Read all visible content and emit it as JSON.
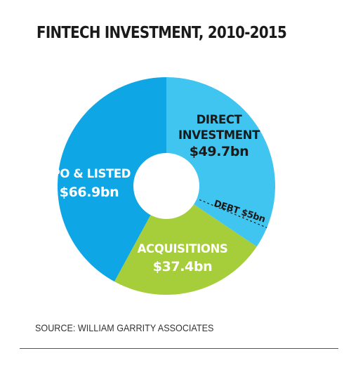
{
  "title": "FINTECH INVESTMENT, 2010-2015",
  "source": "SOURCE: WILLIAM GARRITY ASSOCIATES",
  "chart_data": {
    "type": "pie",
    "title": "FINTECH INVESTMENT, 2010-2015",
    "unit": "$bn",
    "slices": [
      {
        "label": "DIRECT INVESTMENT",
        "label_lines": [
          "DIRECT",
          "INVESTMENT"
        ],
        "value_text": "$49.7bn",
        "value": 49.7,
        "color": "#40c5f0"
      },
      {
        "label": "DEBT",
        "label_lines": [
          "DEBT $5bn"
        ],
        "value_text": "",
        "value": 5,
        "color": "#40c5f0"
      },
      {
        "label": "ACQUISITIONS",
        "label_lines": [
          "ACQUISITIONS"
        ],
        "value_text": "$37.4bn",
        "value": 37.4,
        "color": "#a6cd3a"
      },
      {
        "label": "IPO & LISTED",
        "label_lines": [
          "IPO & LISTED"
        ],
        "value_text": "$66.9bn",
        "value": 66.9,
        "color": "#0fa6e6"
      }
    ],
    "debt_divider": "dashed"
  }
}
